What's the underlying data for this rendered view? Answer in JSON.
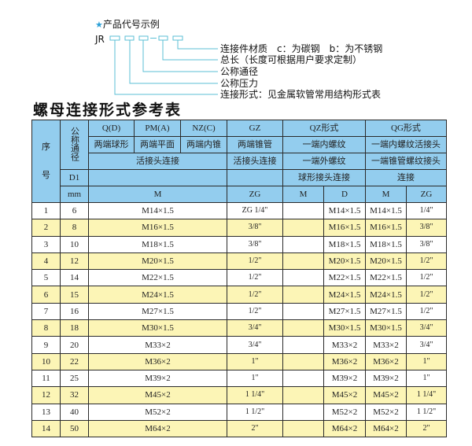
{
  "example": {
    "heading": "产品代号示例",
    "code_prefix": "JR",
    "dash": "-",
    "labels": [
      "连接件材质　c：为碳钢　b：为不锈钢",
      "总长（长度可根据用户要求定制）",
      "公称通径",
      "公称压力",
      "连接形式：见金属软管常用结构形式表"
    ],
    "line_color": "#5bbfd6"
  },
  "title": "螺母连接形式参考表",
  "colors": {
    "header_bg": "#93cdee",
    "even_row_bg": "#fcf5b6",
    "border": "#2a2a2a"
  },
  "header": {
    "seq_top": "序",
    "seq_bottom": "号",
    "dn": "公称通径",
    "d1": "D1",
    "mm": "mm",
    "types": [
      "Q(D)",
      "PM(A)",
      "NZ(C)",
      "GZ",
      "QZ形式",
      "QG形式"
    ],
    "desc": [
      "两端球形",
      "两端平面",
      "两端内锥",
      "两端锥管",
      "一端内螺纹",
      "一端内螺纹活接头"
    ],
    "conn": [
      "活接头连接",
      "活接头连接",
      "一端外螺纹",
      "一端锥管螺纹接头"
    ],
    "conn2": [
      "球形接头连接",
      "连接"
    ],
    "units": [
      "M",
      "ZG",
      "M",
      "D",
      "M",
      "ZG"
    ]
  },
  "rows": [
    [
      "1",
      "6",
      "M14×1.5",
      "ZG 1/4\"",
      "",
      "M14×1.5",
      "M14×1.5",
      "1/4\""
    ],
    [
      "2",
      "8",
      "M16×1.5",
      "3/8\"",
      "",
      "M16×1.5",
      "M16×1.5",
      "3/8\""
    ],
    [
      "3",
      "10",
      "M18×1.5",
      "3/8\"",
      "",
      "M18×1.5",
      "M18×1.5",
      "3/8\""
    ],
    [
      "4",
      "12",
      "M20×1.5",
      "1/2\"",
      "",
      "M20×1.5",
      "M20×1.5",
      "1/2\""
    ],
    [
      "5",
      "14",
      "M22×1.5",
      "1/2\"",
      "",
      "M22×1.5",
      "M22×1.5",
      "1/2\""
    ],
    [
      "6",
      "15",
      "M24×1.5",
      "1/2\"",
      "",
      "M24×1.5",
      "M24×1.5",
      "1/2\""
    ],
    [
      "7",
      "16",
      "M27×1.5",
      "1/2\"",
      "",
      "M27×1.5",
      "M27×1.5",
      "1/2\""
    ],
    [
      "8",
      "18",
      "M30×1.5",
      "3/4\"",
      "",
      "M30×1.5",
      "M30×1.5",
      "3/4\""
    ],
    [
      "9",
      "20",
      "M33×2",
      "3/4\"",
      "",
      "M33×2",
      "M33×2",
      "3/4\""
    ],
    [
      "10",
      "22",
      "M36×2",
      "1\"",
      "",
      "M36×2",
      "M36×2",
      "1\""
    ],
    [
      "11",
      "25",
      "M39×2",
      "1\"",
      "",
      "M39×2",
      "M39×2",
      "1\""
    ],
    [
      "12",
      "32",
      "M45×2",
      "1 1/4\"",
      "",
      "M45×2",
      "M45×2",
      "1 1/4\""
    ],
    [
      "13",
      "40",
      "M52×2",
      "1 1/2\"",
      "",
      "M52×2",
      "M52×2",
      "1 1/2\""
    ],
    [
      "14",
      "50",
      "M64×2",
      "2\"",
      "",
      "M64×2",
      "M64×2",
      "2\""
    ]
  ]
}
